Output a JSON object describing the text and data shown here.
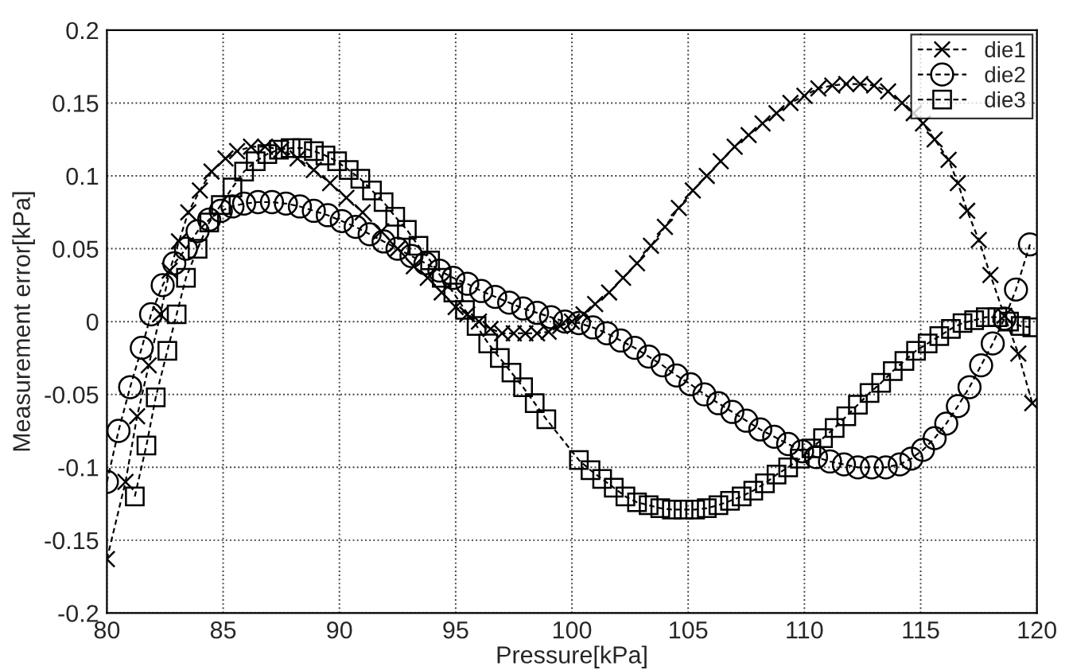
{
  "chart_data": {
    "type": "line",
    "xlabel": "Pressure[kPa]",
    "ylabel": "Measurement error[kPa]",
    "xlim": [
      80,
      120
    ],
    "xticks": [
      80,
      85,
      90,
      95,
      100,
      105,
      110,
      115,
      120
    ],
    "ylim": [
      -0.2,
      0.2
    ],
    "yticks": [
      -0.2,
      -0.15,
      -0.1,
      -0.05,
      0,
      0.05,
      0.1,
      0.15,
      0.2
    ],
    "grid": true,
    "legend": "top right",
    "line_style": "dashed",
    "series": [
      {
        "name": "die1",
        "color": "#000000",
        "marker": "cross",
        "x": [
          80.0,
          80.8,
          81.3,
          81.8,
          82.3,
          82.7,
          83.1,
          83.5,
          84.0,
          84.5,
          85.1,
          85.6,
          86.2,
          86.8,
          87.5,
          88.2,
          88.9,
          89.6,
          90.3,
          91.0,
          91.8,
          92.5,
          93.2,
          93.8,
          94.4,
          95.0,
          95.5,
          96.0,
          96.5,
          97.0,
          97.5,
          98.0,
          98.5,
          99.0,
          99.5,
          100.0,
          100.5,
          101.0,
          101.6,
          102.2,
          102.8,
          103.4,
          104.0,
          104.6,
          105.2,
          105.8,
          106.4,
          107.0,
          107.6,
          108.2,
          108.8,
          109.4,
          110.0,
          110.6,
          111.2,
          111.8,
          112.4,
          113.0,
          113.6,
          114.2,
          114.7,
          115.1,
          115.6,
          116.2,
          116.6,
          117.0,
          117.5,
          118.0,
          118.6,
          119.2,
          119.8
        ],
        "values": [
          -0.163,
          -0.11,
          -0.065,
          -0.03,
          0.005,
          0.035,
          0.055,
          0.075,
          0.09,
          0.103,
          0.112,
          0.117,
          0.12,
          0.12,
          0.118,
          0.112,
          0.104,
          0.095,
          0.085,
          0.075,
          0.062,
          0.05,
          0.038,
          0.03,
          0.02,
          0.01,
          0.005,
          0.0,
          -0.005,
          -0.008,
          -0.008,
          -0.008,
          -0.008,
          -0.007,
          -0.003,
          0.0,
          0.005,
          0.012,
          0.02,
          0.03,
          0.04,
          0.052,
          0.065,
          0.078,
          0.09,
          0.1,
          0.11,
          0.12,
          0.128,
          0.136,
          0.143,
          0.15,
          0.155,
          0.16,
          0.162,
          0.163,
          0.163,
          0.162,
          0.158,
          0.15,
          0.143,
          0.136,
          0.125,
          0.111,
          0.095,
          0.076,
          0.056,
          0.032,
          0.004,
          -0.022,
          -0.056
        ]
      },
      {
        "name": "die2",
        "color": "#000000",
        "marker": "circle",
        "x": [
          80.0,
          80.5,
          81.0,
          81.5,
          81.9,
          82.4,
          82.9,
          83.4,
          83.9,
          84.4,
          84.9,
          85.4,
          85.9,
          86.5,
          87.1,
          87.7,
          88.3,
          88.9,
          89.5,
          90.1,
          90.7,
          91.3,
          91.9,
          92.5,
          93.1,
          93.7,
          94.3,
          94.9,
          95.5,
          96.1,
          96.7,
          97.3,
          97.9,
          98.5,
          99.1,
          99.7,
          100.3,
          100.9,
          101.5,
          102.1,
          102.7,
          103.3,
          103.9,
          104.5,
          105.1,
          105.7,
          106.3,
          106.9,
          107.5,
          108.1,
          108.7,
          109.3,
          109.9,
          110.5,
          111.1,
          111.7,
          112.3,
          112.9,
          113.5,
          114.1,
          114.6,
          115.1,
          115.6,
          116.1,
          116.6,
          117.1,
          117.6,
          118.1,
          118.6,
          119.1,
          119.7
        ],
        "values": [
          -0.11,
          -0.075,
          -0.045,
          -0.018,
          0.005,
          0.025,
          0.04,
          0.05,
          0.062,
          0.07,
          0.076,
          0.079,
          0.081,
          0.082,
          0.082,
          0.081,
          0.079,
          0.076,
          0.073,
          0.069,
          0.065,
          0.06,
          0.055,
          0.05,
          0.045,
          0.04,
          0.035,
          0.03,
          0.026,
          0.021,
          0.017,
          0.013,
          0.009,
          0.006,
          0.003,
          0.0,
          -0.001,
          -0.004,
          -0.008,
          -0.013,
          -0.018,
          -0.024,
          -0.03,
          -0.037,
          -0.043,
          -0.05,
          -0.056,
          -0.062,
          -0.068,
          -0.074,
          -0.079,
          -0.084,
          -0.089,
          -0.093,
          -0.096,
          -0.098,
          -0.1,
          -0.1,
          -0.1,
          -0.098,
          -0.094,
          -0.088,
          -0.08,
          -0.07,
          -0.058,
          -0.045,
          -0.03,
          -0.015,
          0.002,
          0.022,
          0.053
        ]
      },
      {
        "name": "die3",
        "color": "#000000",
        "marker": "square",
        "x": [
          81.2,
          81.7,
          82.1,
          82.6,
          83.0,
          83.4,
          83.9,
          84.4,
          84.9,
          85.4,
          85.9,
          86.4,
          86.9,
          87.4,
          87.9,
          88.4,
          88.9,
          89.4,
          89.9,
          90.4,
          90.9,
          91.4,
          91.9,
          92.4,
          92.9,
          93.4,
          93.9,
          94.4,
          94.9,
          95.4,
          95.9,
          96.4,
          96.9,
          97.4,
          97.9,
          98.4,
          98.9,
          100.3,
          100.8,
          101.3,
          101.8,
          102.3,
          102.8,
          103.3,
          103.8,
          104.3,
          104.8,
          105.3,
          105.8,
          106.3,
          106.8,
          107.3,
          107.8,
          108.3,
          108.8,
          109.3,
          109.8,
          110.3,
          110.8,
          111.3,
          111.8,
          112.3,
          112.8,
          113.3,
          113.8,
          114.3,
          114.8,
          115.3,
          115.8,
          116.3,
          116.8,
          117.3,
          117.8,
          118.3,
          118.8,
          119.3,
          119.8
        ],
        "values": [
          -0.12,
          -0.085,
          -0.052,
          -0.02,
          0.005,
          0.03,
          0.05,
          0.068,
          0.08,
          0.092,
          0.103,
          0.11,
          0.115,
          0.118,
          0.119,
          0.119,
          0.117,
          0.114,
          0.11,
          0.104,
          0.098,
          0.09,
          0.082,
          0.072,
          0.063,
          0.052,
          0.042,
          0.03,
          0.02,
          0.008,
          -0.003,
          -0.015,
          -0.025,
          -0.035,
          -0.045,
          -0.056,
          -0.067,
          -0.095,
          -0.102,
          -0.108,
          -0.114,
          -0.12,
          -0.124,
          -0.126,
          -0.128,
          -0.129,
          -0.129,
          -0.129,
          -0.128,
          -0.126,
          -0.123,
          -0.12,
          -0.116,
          -0.111,
          -0.105,
          -0.1,
          -0.094,
          -0.087,
          -0.08,
          -0.073,
          -0.065,
          -0.057,
          -0.049,
          -0.042,
          -0.034,
          -0.027,
          -0.02,
          -0.015,
          -0.01,
          -0.005,
          -0.001,
          0.001,
          0.003,
          0.003,
          0.0,
          -0.003,
          -0.004
        ]
      }
    ]
  }
}
